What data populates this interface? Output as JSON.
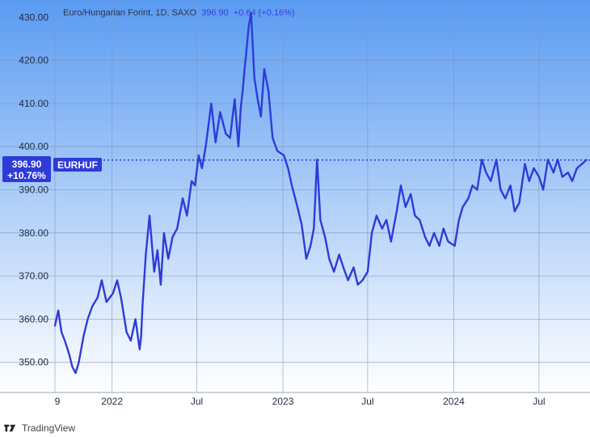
{
  "header": {
    "symbol_description": "Euro/Hungarian Forint, 1D, SAXO",
    "last_price": "396.90",
    "change": "+0.64 (+0.16%)"
  },
  "price_tag": {
    "price": "396.90",
    "percent": "+10.76%",
    "symbol": "EURHUF"
  },
  "footer": {
    "brand": "TradingView",
    "logo_icon": "tradingview-logo-icon"
  },
  "colors": {
    "line": "#2e3bd9",
    "bg_top": "#5a9bf2",
    "bg_bottom": "#ffffff",
    "tag_bg": "#2e3bd9",
    "grid": "#7f94b8"
  },
  "chart_data": {
    "type": "line",
    "title": "Euro/Hungarian Forint, 1D, SAXO",
    "xlabel": "",
    "ylabel": "",
    "x_ticks": [
      "9",
      "2022",
      "Jul",
      "2023",
      "Jul",
      "2024",
      "Jul"
    ],
    "y_ticks": [
      350,
      360,
      370,
      380,
      390,
      400,
      410,
      420,
      430
    ],
    "y_tick_labels": [
      "350.00",
      "360.00",
      "370.00",
      "380.00",
      "390.00",
      "400.00",
      "410.00",
      "420.00",
      "430.00"
    ],
    "ylim": [
      343,
      434
    ],
    "xlim": [
      "2021-09-01",
      "2024-10-18"
    ],
    "grid": true,
    "last_value": 396.9,
    "series": [
      {
        "name": "EURHUF",
        "x": [
          "2021-09-01",
          "2021-09-08",
          "2021-09-15",
          "2021-09-22",
          "2021-10-01",
          "2021-10-08",
          "2021-10-15",
          "2021-10-22",
          "2021-11-01",
          "2021-11-10",
          "2021-11-20",
          "2021-12-01",
          "2021-12-10",
          "2021-12-20",
          "2022-01-03",
          "2022-01-12",
          "2022-01-20",
          "2022-02-01",
          "2022-02-10",
          "2022-02-20",
          "2022-03-01",
          "2022-03-04",
          "2022-03-07",
          "2022-03-14",
          "2022-03-22",
          "2022-04-01",
          "2022-04-08",
          "2022-04-15",
          "2022-04-22",
          "2022-05-01",
          "2022-05-10",
          "2022-05-20",
          "2022-06-01",
          "2022-06-10",
          "2022-06-20",
          "2022-06-27",
          "2022-07-05",
          "2022-07-12",
          "2022-07-20",
          "2022-08-01",
          "2022-08-10",
          "2022-08-20",
          "2022-09-01",
          "2022-09-10",
          "2022-09-20",
          "2022-09-28",
          "2022-10-03",
          "2022-10-07",
          "2022-10-11",
          "2022-10-14",
          "2022-10-20",
          "2022-10-25",
          "2022-11-01",
          "2022-11-08",
          "2022-11-15",
          "2022-11-22",
          "2022-12-01",
          "2022-12-10",
          "2022-12-20",
          "2023-01-03",
          "2023-01-12",
          "2023-01-20",
          "2023-02-01",
          "2023-02-10",
          "2023-02-20",
          "2023-03-01",
          "2023-03-08",
          "2023-03-15",
          "2023-03-22",
          "2023-04-01",
          "2023-04-10",
          "2023-04-20",
          "2023-05-01",
          "2023-05-10",
          "2023-05-20",
          "2023-06-01",
          "2023-06-10",
          "2023-06-20",
          "2023-07-01",
          "2023-07-10",
          "2023-07-20",
          "2023-08-01",
          "2023-08-10",
          "2023-08-20",
          "2023-09-01",
          "2023-09-10",
          "2023-09-20",
          "2023-10-01",
          "2023-10-10",
          "2023-10-20",
          "2023-11-01",
          "2023-11-10",
          "2023-11-20",
          "2023-12-01",
          "2023-12-10",
          "2023-12-20",
          "2024-01-03",
          "2024-01-12",
          "2024-01-20",
          "2024-02-01",
          "2024-02-10",
          "2024-02-20",
          "2024-03-01",
          "2024-03-10",
          "2024-03-20",
          "2024-04-01",
          "2024-04-10",
          "2024-04-20",
          "2024-05-01",
          "2024-05-10",
          "2024-05-20",
          "2024-06-01",
          "2024-06-10",
          "2024-06-20",
          "2024-07-01",
          "2024-07-10",
          "2024-07-20",
          "2024-08-01",
          "2024-08-10",
          "2024-08-20",
          "2024-09-01",
          "2024-09-10",
          "2024-09-20",
          "2024-10-01",
          "2024-10-10"
        ],
        "values": [
          358.5,
          362,
          357,
          355,
          352,
          349,
          347.5,
          350,
          356,
          360,
          363,
          365,
          369,
          364,
          366,
          369,
          365,
          357,
          355,
          360,
          353,
          356,
          363,
          375,
          384,
          371,
          376,
          368,
          380,
          374,
          379,
          381,
          388,
          384,
          392,
          391,
          398,
          395,
          400,
          410,
          401,
          408,
          403,
          402,
          411,
          400,
          409,
          413,
          418,
          421,
          428,
          431,
          416,
          411,
          407,
          418,
          413,
          402,
          399,
          398,
          395,
          391,
          386,
          382,
          374,
          377,
          381,
          397,
          383,
          379,
          374,
          371,
          375,
          372,
          369,
          372,
          368,
          369,
          371,
          380,
          384,
          381,
          383,
          378,
          385,
          391,
          386,
          389,
          384,
          383,
          379,
          377,
          380,
          377,
          381,
          378,
          377,
          383,
          386,
          388,
          391,
          390,
          397,
          394,
          392,
          397,
          390,
          388,
          391,
          385,
          387,
          396,
          392,
          395,
          393,
          390,
          397,
          394,
          397,
          393,
          394,
          392,
          395,
          396,
          396.9
        ]
      }
    ]
  }
}
